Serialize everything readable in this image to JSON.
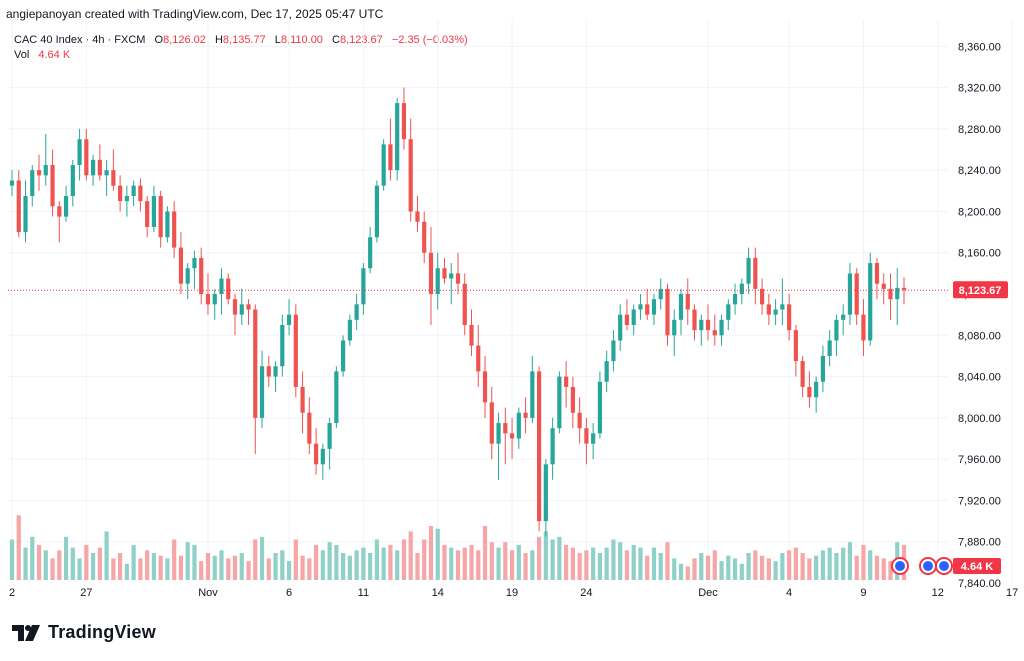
{
  "header": {
    "byline": "angiepanoyan created with TradingView.com, Dec 17, 2025 05:47 UTC"
  },
  "legend": {
    "symbol": "CAC 40 Index · 4h · FXCM",
    "open_label": "O",
    "open": "8,126.02",
    "high_label": "H",
    "high": "8,135.77",
    "low_label": "L",
    "low": "8,110.00",
    "close_label": "C",
    "close": "8,123.67",
    "change": "−2.35 (−0.03%)",
    "vol_label": "Vol",
    "vol_value": "4.64 K"
  },
  "brand": {
    "name": "TradingView"
  },
  "colors": {
    "up": "#26a69a",
    "down": "#ef5350",
    "up_vol": "#8fd1c9",
    "down_vol": "#f6a6a6",
    "price_label": "#f23645",
    "grid": "#f0f3fa",
    "axis_text": "#131722"
  },
  "chart_data": {
    "type": "candlestick",
    "title": "CAC 40 Index · 4h · FXCM",
    "ylim": [
      7840,
      8370
    ],
    "y_ticks": [
      "8,360.00",
      "8,320.00",
      "8,280.00",
      "8,240.00",
      "8,200.00",
      "8,160.00",
      "8,120.00",
      "8,080.00",
      "8,040.00",
      "8,000.00",
      "7,960.00",
      "7,920.00",
      "7,880.00",
      "7,840.00"
    ],
    "y_tick_values": [
      8360,
      8320,
      8280,
      8240,
      8200,
      8160,
      8120,
      8080,
      8040,
      8000,
      7960,
      7920,
      7880,
      7840
    ],
    "x_ticks": [
      {
        "label": "2",
        "index": 0
      },
      {
        "label": "27",
        "index": 11
      },
      {
        "label": "Nov",
        "index": 29
      },
      {
        "label": "6",
        "index": 41
      },
      {
        "label": "11",
        "index": 52
      },
      {
        "label": "14",
        "index": 63
      },
      {
        "label": "19",
        "index": 74
      },
      {
        "label": "24",
        "index": 85
      },
      {
        "label": "Dec",
        "index": 103
      },
      {
        "label": "4",
        "index": 115
      },
      {
        "label": "9",
        "index": 126
      },
      {
        "label": "12",
        "index": 137
      },
      {
        "label": "17",
        "index": 148
      }
    ],
    "last_price": 8123.67,
    "last_price_label": "8,123.67",
    "volume_label": "4.64 K",
    "candles": [
      [
        8225,
        8240,
        8215,
        8230,
        1.5
      ],
      [
        8230,
        8240,
        8175,
        8180,
        2.4
      ],
      [
        8180,
        8230,
        8170,
        8215,
        1.2
      ],
      [
        8215,
        8245,
        8205,
        8240,
        1.6
      ],
      [
        8240,
        8255,
        8220,
        8235,
        1.3
      ],
      [
        8235,
        8275,
        8225,
        8245,
        1.1
      ],
      [
        8245,
        8260,
        8195,
        8205,
        0.8
      ],
      [
        8205,
        8210,
        8170,
        8195,
        1.1
      ],
      [
        8195,
        8225,
        8190,
        8215,
        1.6
      ],
      [
        8215,
        8250,
        8205,
        8245,
        1.2
      ],
      [
        8245,
        8280,
        8230,
        8270,
        0.8
      ],
      [
        8270,
        8280,
        8230,
        8235,
        1.3
      ],
      [
        8235,
        8255,
        8225,
        8250,
        1.0
      ],
      [
        8250,
        8265,
        8230,
        8235,
        1.2
      ],
      [
        8235,
        8250,
        8215,
        8240,
        1.8
      ],
      [
        8240,
        8260,
        8220,
        8225,
        0.8
      ],
      [
        8225,
        8235,
        8200,
        8210,
        1.0
      ],
      [
        8210,
        8225,
        8195,
        8215,
        0.6
      ],
      [
        8215,
        8230,
        8205,
        8225,
        1.3
      ],
      [
        8225,
        8232,
        8200,
        8210,
        0.8
      ],
      [
        8210,
        8215,
        8175,
        8185,
        1.1
      ],
      [
        8185,
        8225,
        8180,
        8215,
        1.0
      ],
      [
        8215,
        8220,
        8165,
        8175,
        0.9
      ],
      [
        8175,
        8205,
        8170,
        8200,
        0.8
      ],
      [
        8200,
        8210,
        8155,
        8165,
        1.5
      ],
      [
        8165,
        8180,
        8120,
        8130,
        0.9
      ],
      [
        8130,
        8150,
        8115,
        8145,
        1.4
      ],
      [
        8145,
        8162,
        8125,
        8155,
        1.3
      ],
      [
        8155,
        8165,
        8110,
        8120,
        0.7
      ],
      [
        8120,
        8140,
        8100,
        8110,
        1.0
      ],
      [
        8110,
        8125,
        8095,
        8120,
        0.9
      ],
      [
        8120,
        8145,
        8100,
        8135,
        1.1
      ],
      [
        8135,
        8140,
        8110,
        8115,
        0.8
      ],
      [
        8115,
        8120,
        8080,
        8100,
        0.9
      ],
      [
        8100,
        8125,
        8090,
        8110,
        1.0
      ],
      [
        8110,
        8115,
        8090,
        8105,
        0.7
      ],
      [
        8105,
        8110,
        7965,
        8000,
        1.5
      ],
      [
        8000,
        8065,
        7990,
        8050,
        1.6
      ],
      [
        8050,
        8060,
        8030,
        8040,
        0.8
      ],
      [
        8040,
        8055,
        8025,
        8050,
        1.0
      ],
      [
        8050,
        8100,
        8040,
        8090,
        1.1
      ],
      [
        8090,
        8115,
        8080,
        8100,
        0.7
      ],
      [
        8100,
        8110,
        8020,
        8030,
        1.5
      ],
      [
        8030,
        8045,
        7985,
        8005,
        0.9
      ],
      [
        8005,
        8020,
        7965,
        7975,
        0.8
      ],
      [
        7975,
        7990,
        7945,
        7955,
        1.3
      ],
      [
        7955,
        7975,
        7940,
        7970,
        1.1
      ],
      [
        7970,
        8000,
        7950,
        7995,
        1.4
      ],
      [
        7995,
        8050,
        7990,
        8045,
        1.3
      ],
      [
        8045,
        8080,
        8040,
        8075,
        1.0
      ],
      [
        8075,
        8100,
        8070,
        8095,
        0.9
      ],
      [
        8095,
        8120,
        8085,
        8110,
        1.1
      ],
      [
        8110,
        8150,
        8100,
        8145,
        1.2
      ],
      [
        8145,
        8185,
        8140,
        8175,
        1.0
      ],
      [
        8175,
        8230,
        8170,
        8225,
        1.5
      ],
      [
        8225,
        8270,
        8220,
        8265,
        1.2
      ],
      [
        8265,
        8290,
        8230,
        8240,
        1.3
      ],
      [
        8240,
        8310,
        8230,
        8305,
        1.1
      ],
      [
        8305,
        8320,
        8260,
        8270,
        1.5
      ],
      [
        8270,
        8290,
        8190,
        8200,
        1.8
      ],
      [
        8200,
        8215,
        8180,
        8190,
        1.0
      ],
      [
        8190,
        8200,
        8150,
        8160,
        1.5
      ],
      [
        8160,
        8185,
        8090,
        8120,
        2.0
      ],
      [
        8120,
        8160,
        8105,
        8145,
        1.9
      ],
      [
        8145,
        8155,
        8130,
        8135,
        1.3
      ],
      [
        8135,
        8150,
        8110,
        8140,
        1.2
      ],
      [
        8140,
        8160,
        8120,
        8130,
        1.1
      ],
      [
        8130,
        8140,
        8080,
        8090,
        1.2
      ],
      [
        8090,
        8105,
        8060,
        8070,
        1.3
      ],
      [
        8070,
        8090,
        8030,
        8045,
        1.1
      ],
      [
        8045,
        8060,
        8000,
        8015,
        2.0
      ],
      [
        8015,
        8030,
        7960,
        7975,
        1.4
      ],
      [
        7975,
        8005,
        7940,
        7995,
        1.2
      ],
      [
        7995,
        8010,
        7955,
        7985,
        1.4
      ],
      [
        7985,
        8000,
        7960,
        7980,
        1.1
      ],
      [
        7980,
        8010,
        7970,
        8005,
        1.3
      ],
      [
        8005,
        8020,
        7985,
        8000,
        1.0
      ],
      [
        8000,
        8060,
        7995,
        8045,
        1.1
      ],
      [
        8045,
        8050,
        7890,
        7900,
        1.6
      ],
      [
        7900,
        7960,
        7885,
        7955,
        1.8
      ],
      [
        7955,
        8000,
        7940,
        7990,
        1.5
      ],
      [
        7990,
        8045,
        7985,
        8040,
        1.6
      ],
      [
        8040,
        8055,
        8010,
        8030,
        1.3
      ],
      [
        8030,
        8040,
        7990,
        8005,
        1.2
      ],
      [
        8005,
        8020,
        7975,
        7990,
        1.0
      ],
      [
        7990,
        8000,
        7955,
        7975,
        1.1
      ],
      [
        7975,
        7995,
        7960,
        7985,
        1.2
      ],
      [
        7985,
        8045,
        7980,
        8035,
        1.0
      ],
      [
        8035,
        8065,
        8025,
        8055,
        1.2
      ],
      [
        8055,
        8085,
        8045,
        8075,
        1.5
      ],
      [
        8075,
        8110,
        8065,
        8100,
        1.4
      ],
      [
        8100,
        8115,
        8085,
        8090,
        1.1
      ],
      [
        8090,
        8110,
        8080,
        8105,
        1.3
      ],
      [
        8105,
        8120,
        8095,
        8110,
        1.2
      ],
      [
        8110,
        8125,
        8095,
        8100,
        0.9
      ],
      [
        8100,
        8120,
        8090,
        8115,
        1.2
      ],
      [
        8115,
        8135,
        8105,
        8125,
        1.0
      ],
      [
        8125,
        8130,
        8070,
        8080,
        1.4
      ],
      [
        8080,
        8105,
        8060,
        8095,
        0.8
      ],
      [
        8095,
        8125,
        8080,
        8120,
        0.6
      ],
      [
        8120,
        8135,
        8090,
        8105,
        0.5
      ],
      [
        8105,
        8110,
        8075,
        8085,
        0.8
      ],
      [
        8085,
        8100,
        8070,
        8095,
        1.0
      ],
      [
        8095,
        8110,
        8075,
        8085,
        0.9
      ],
      [
        8085,
        8100,
        8070,
        8080,
        1.1
      ],
      [
        8080,
        8100,
        8070,
        8095,
        0.7
      ],
      [
        8095,
        8115,
        8085,
        8110,
        0.9
      ],
      [
        8110,
        8130,
        8100,
        8120,
        0.8
      ],
      [
        8120,
        8135,
        8110,
        8130,
        0.6
      ],
      [
        8130,
        8165,
        8120,
        8155,
        1.0
      ],
      [
        8155,
        8165,
        8110,
        8125,
        1.1
      ],
      [
        8125,
        8135,
        8100,
        8110,
        0.9
      ],
      [
        8110,
        8120,
        8090,
        8100,
        0.8
      ],
      [
        8100,
        8115,
        8090,
        8105,
        0.7
      ],
      [
        8105,
        8135,
        8090,
        8110,
        1.0
      ],
      [
        8110,
        8120,
        8075,
        8085,
        1.1
      ],
      [
        8085,
        8090,
        8040,
        8055,
        1.2
      ],
      [
        8055,
        8060,
        8020,
        8030,
        1.0
      ],
      [
        8030,
        8045,
        8010,
        8020,
        0.8
      ],
      [
        8020,
        8040,
        8005,
        8035,
        0.9
      ],
      [
        8035,
        8070,
        8025,
        8060,
        1.1
      ],
      [
        8060,
        8085,
        8050,
        8075,
        1.2
      ],
      [
        8075,
        8100,
        8060,
        8095,
        1.0
      ],
      [
        8095,
        8110,
        8080,
        8100,
        1.2
      ],
      [
        8100,
        8150,
        8090,
        8140,
        1.4
      ],
      [
        8140,
        8145,
        8090,
        8100,
        0.9
      ],
      [
        8100,
        8115,
        8060,
        8075,
        1.3
      ],
      [
        8075,
        8160,
        8070,
        8150,
        1.1
      ],
      [
        8150,
        8155,
        8115,
        8130,
        0.9
      ],
      [
        8130,
        8140,
        8110,
        8125,
        0.8
      ],
      [
        8125,
        8140,
        8095,
        8115,
        0.7
      ],
      [
        8115,
        8145,
        8090,
        8126,
        1.4
      ],
      [
        8126,
        8136,
        8110,
        8124,
        1.3
      ]
    ]
  }
}
